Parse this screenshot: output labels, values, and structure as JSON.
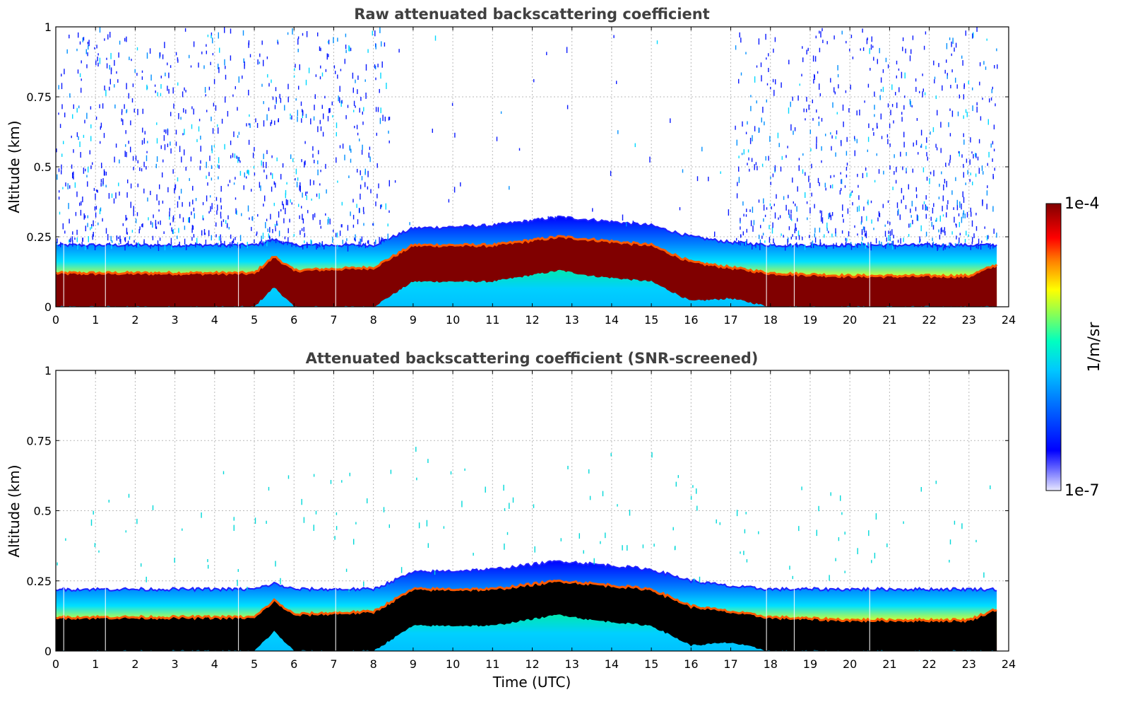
{
  "chart_data": [
    {
      "type": "heatmap",
      "title": "Raw attenuated backscattering coefficient",
      "xlabel": "",
      "ylabel": "Altitude (km)",
      "xlim": [
        0,
        24
      ],
      "ylim": [
        0,
        1
      ],
      "x_ticks": [
        "0",
        "1",
        "2",
        "3",
        "4",
        "5",
        "6",
        "7",
        "8",
        "9",
        "10",
        "11",
        "12",
        "13",
        "14",
        "15",
        "16",
        "17",
        "18",
        "19",
        "20",
        "21",
        "22",
        "23",
        "24"
      ],
      "y_ticks": [
        "0",
        "0.25",
        "0.5",
        "0.75",
        "1"
      ],
      "grid": true,
      "data_end_time": 23.7,
      "layer_profile": {
        "time": [
          0,
          4,
          5,
          5.5,
          6,
          8,
          9,
          11,
          12.7,
          13.5,
          15,
          16,
          17,
          18,
          20,
          23,
          23.7
        ],
        "mixed_layer_top_km": [
          0.22,
          0.22,
          0.22,
          0.24,
          0.22,
          0.22,
          0.28,
          0.29,
          0.32,
          0.31,
          0.29,
          0.25,
          0.23,
          0.22,
          0.22,
          0.22,
          0.22
        ],
        "saturated_layer_top_km": [
          0.12,
          0.12,
          0.12,
          0.18,
          0.13,
          0.14,
          0.22,
          0.22,
          0.25,
          0.24,
          0.22,
          0.16,
          0.14,
          0.12,
          0.11,
          0.11,
          0.15
        ],
        "near_surface_clear_top_km": [
          0,
          0,
          0,
          0.07,
          0,
          0,
          0.09,
          0.09,
          0.13,
          0.11,
          0.09,
          0.02,
          0.03,
          0,
          0,
          0,
          0
        ]
      }
    },
    {
      "type": "heatmap",
      "title": "Attenuated backscattering coefficient (SNR-screened)",
      "xlabel": "Time (UTC)",
      "ylabel": "Altitude (km)",
      "xlim": [
        0,
        24
      ],
      "ylim": [
        0,
        1
      ],
      "x_ticks": [
        "0",
        "1",
        "2",
        "3",
        "4",
        "5",
        "6",
        "7",
        "8",
        "9",
        "10",
        "11",
        "12",
        "13",
        "14",
        "15",
        "16",
        "17",
        "18",
        "19",
        "20",
        "21",
        "22",
        "23",
        "24"
      ],
      "y_ticks": [
        "0",
        "0.25",
        "0.5",
        "0.75",
        "1"
      ],
      "grid": true,
      "data_end_time": 23.7
    }
  ],
  "colorbar": {
    "label": "1/m/sr",
    "min_label": "1e-7",
    "max_label": "1e-4",
    "scale": "log",
    "colors": [
      "#e8e8ff",
      "#0000ff",
      "#00c8ff",
      "#00ffc0",
      "#ffff00",
      "#ff8000",
      "#ff0000",
      "#800000"
    ]
  }
}
